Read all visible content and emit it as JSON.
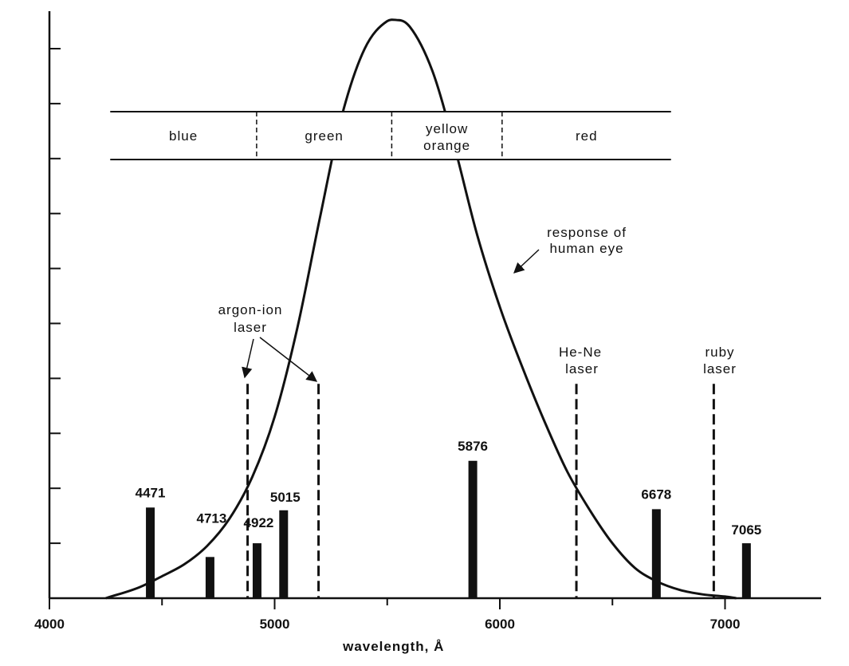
{
  "chart_data": {
    "type": "bar",
    "x_axis": {
      "label": "wavelength, Å",
      "range": [
        4000,
        7400
      ],
      "major_ticks": [
        4000,
        5000,
        6000,
        7000
      ],
      "minor_ticks": [
        4500,
        5500,
        6500
      ]
    },
    "y_axis": {
      "label": "",
      "range": [
        0,
        10.5
      ],
      "minor_ticks": [
        1,
        2,
        3,
        4,
        5,
        6,
        7,
        8,
        9,
        10
      ],
      "tick_labels": false
    },
    "grid": false,
    "emission_lines": [
      {
        "label": "4471",
        "x": 4448,
        "height": 1.65
      },
      {
        "label": "4713",
        "x": 4713,
        "height": 0.75
      },
      {
        "label": "4922",
        "x": 4922,
        "height": 1.0
      },
      {
        "label": "5015",
        "x": 5040,
        "height": 1.6
      },
      {
        "label": "5876",
        "x": 5880,
        "height": 2.5
      },
      {
        "label": "6678",
        "x": 6695,
        "height": 1.62
      },
      {
        "label": "7065",
        "x": 7095,
        "height": 1.0
      }
    ],
    "laser_lines": [
      {
        "x": 4880,
        "height": 3.9
      },
      {
        "x": 5195,
        "height": 3.9
      },
      {
        "x": 6340,
        "height": 3.9
      },
      {
        "x": 6950,
        "height": 3.9
      }
    ],
    "laser_labels": [
      {
        "lines": [
          "argon-ion",
          "laser"
        ]
      },
      {
        "lines": [
          "He-Ne",
          "laser"
        ]
      },
      {
        "lines": [
          "ruby",
          "laser"
        ]
      }
    ],
    "eye_response": {
      "label_lines": [
        "response of",
        "human eye"
      ],
      "x": [
        4250,
        4400,
        4500,
        4600,
        4700,
        4800,
        4900,
        5000,
        5100,
        5200,
        5300,
        5400,
        5500,
        5550,
        5600,
        5700,
        5800,
        5900,
        6000,
        6100,
        6200,
        6300,
        6400,
        6500,
        6600,
        6700,
        6800,
        6900,
        7000,
        7050
      ],
      "y": [
        0.0,
        0.2,
        0.4,
        0.62,
        0.95,
        1.45,
        2.2,
        3.3,
        4.9,
        6.9,
        8.8,
        10.0,
        10.5,
        10.52,
        10.4,
        9.6,
        8.2,
        6.6,
        5.3,
        4.2,
        3.2,
        2.3,
        1.6,
        1.0,
        0.55,
        0.3,
        0.15,
        0.07,
        0.03,
        0.0
      ]
    },
    "color_bands": [
      {
        "label": "blue",
        "from": 4270,
        "to": 4920
      },
      {
        "label": "green",
        "from": 4920,
        "to": 5520
      },
      {
        "label_lines": [
          "yellow",
          "orange"
        ],
        "from": 5520,
        "to": 6010
      },
      {
        "label": "red",
        "from": 6010,
        "to": 6760
      }
    ]
  }
}
